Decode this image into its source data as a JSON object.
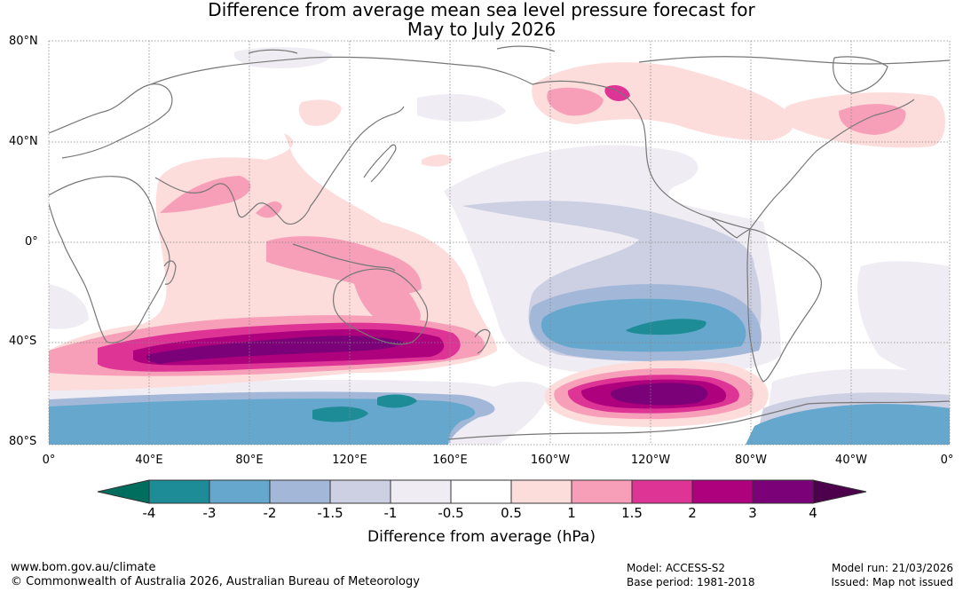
{
  "title": {
    "line1": "Difference from average mean sea level pressure forecast for",
    "line2": "May to July 2026"
  },
  "map": {
    "lat_labels": [
      "80°N",
      "40°N",
      "0°",
      "40°S",
      "80°S"
    ],
    "lon_labels": [
      "0°",
      "40°E",
      "80°E",
      "120°E",
      "160°E",
      "160°W",
      "120°W",
      "80°W",
      "40°W",
      "0°"
    ],
    "regions": [
      {
        "name": "n-pacific-weak-negative",
        "level": "-1 to -0.5"
      },
      {
        "name": "tropical-pacific-negative",
        "level": "-1.5 to -1"
      },
      {
        "name": "se-pacific-low",
        "level": "-3 to -2"
      },
      {
        "name": "se-pacific-low-core",
        "level": "-4 to -3"
      },
      {
        "name": "southern-ocean-high",
        "level": "3 to 4"
      },
      {
        "name": "south-indian-ocean-high",
        "level": "3 to 4"
      },
      {
        "name": "antarctic-coast-low",
        "level": "-3 to -2"
      },
      {
        "name": "north-atlantic-high",
        "level": "1 to 1.5"
      },
      {
        "name": "alaska-high",
        "level": "1.5 to 2"
      },
      {
        "name": "indian-ocean-positive",
        "level": "0.5 to 1"
      }
    ]
  },
  "colorbar": {
    "title": "Difference from average (hPa)",
    "tick_labels": [
      "-4",
      "-3",
      "-2",
      "-1.5",
      "-1",
      "-0.5",
      "0.5",
      "1",
      "1.5",
      "2",
      "3",
      "4"
    ],
    "colors": [
      "#006e5f",
      "#1e8c96",
      "#65a7cd",
      "#a3b8d8",
      "#cdcfe3",
      "#efedf3",
      "#ffffff",
      "#fddcdc",
      "#f79fb8",
      "#dd3496",
      "#ae017e",
      "#7a0177",
      "#4d004b"
    ]
  },
  "footer": {
    "website": "www.bom.gov.au/climate",
    "copyright": "© Commonwealth of Australia 2026, Australian Bureau of Meteorology",
    "model": "Model: ACCESS-S2",
    "base_period": "Base period: 1981-2018",
    "model_run": "Model run: 21/03/2026",
    "issued": "Issued: Map not issued"
  }
}
